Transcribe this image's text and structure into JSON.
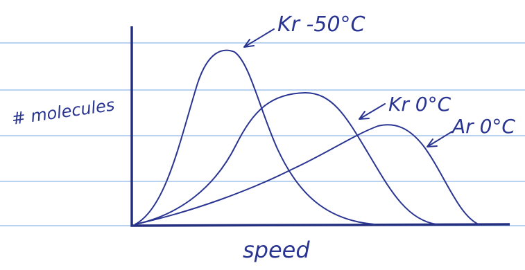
{
  "axes": {
    "y_label": "# molecules",
    "x_label": "speed"
  },
  "curves": [
    {
      "label": "Kr -50°C"
    },
    {
      "label": "Kr 0°C"
    },
    {
      "label": "Ar 0°C"
    }
  ]
}
